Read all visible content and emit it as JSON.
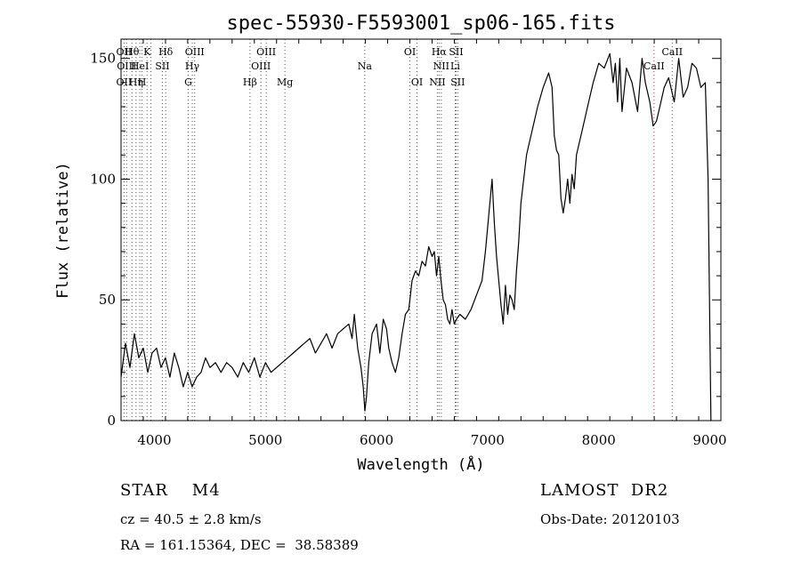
{
  "chart_data": {
    "type": "line",
    "title": "spec-55930-F5593001_sp06-165.fits",
    "xlabel": "Wavelength (Å)",
    "ylabel": "Flux (relative)",
    "xlim": [
      3700,
      9100
    ],
    "ylim": [
      0,
      158
    ],
    "x_ticks": [
      4000,
      5000,
      6000,
      7000,
      8000,
      9000
    ],
    "y_ticks": [
      0,
      50,
      100,
      150
    ],
    "grid": false,
    "series": [
      {
        "color": "#000000",
        "x": [
          3700,
          3740,
          3780,
          3820,
          3860,
          3900,
          3940,
          3980,
          4020,
          4060,
          4100,
          4140,
          4180,
          4220,
          4260,
          4300,
          4340,
          4380,
          4420,
          4460,
          4500,
          4550,
          4600,
          4650,
          4700,
          4750,
          4800,
          4850,
          4900,
          4950,
          5000,
          5050,
          5100,
          5150,
          5200,
          5250,
          5300,
          5350,
          5400,
          5450,
          5500,
          5550,
          5600,
          5650,
          5700,
          5750,
          5780,
          5800,
          5830,
          5860,
          5880,
          5895,
          5910,
          5930,
          5960,
          6000,
          6030,
          6060,
          6090,
          6110,
          6140,
          6170,
          6200,
          6230,
          6260,
          6290,
          6320,
          6350,
          6380,
          6410,
          6440,
          6470,
          6500,
          6520,
          6540,
          6560,
          6580,
          6600,
          6620,
          6640,
          6660,
          6680,
          6700,
          6720,
          6750,
          6800,
          6850,
          6900,
          6950,
          6980,
          7000,
          7020,
          7040,
          7060,
          7080,
          7100,
          7120,
          7140,
          7160,
          7180,
          7200,
          7220,
          7240,
          7260,
          7280,
          7300,
          7350,
          7400,
          7450,
          7500,
          7550,
          7580,
          7600,
          7620,
          7640,
          7660,
          7680,
          7700,
          7720,
          7740,
          7760,
          7780,
          7800,
          7850,
          7900,
          7950,
          8000,
          8050,
          8100,
          8130,
          8150,
          8170,
          8190,
          8210,
          8250,
          8300,
          8350,
          8390,
          8420,
          8460,
          8490,
          8520,
          8550,
          8590,
          8630,
          8680,
          8720,
          8760,
          8800,
          8840,
          8880,
          8920,
          8960,
          8985,
          9000,
          9010
        ],
        "y": [
          18,
          32,
          22,
          36,
          26,
          30,
          20,
          28,
          30,
          22,
          26,
          18,
          28,
          22,
          14,
          20,
          14,
          18,
          20,
          26,
          22,
          24,
          20,
          24,
          22,
          18,
          24,
          20,
          26,
          18,
          24,
          20,
          22,
          24,
          26,
          28,
          30,
          32,
          34,
          28,
          32,
          36,
          30,
          36,
          38,
          40,
          34,
          44,
          30,
          22,
          14,
          4,
          10,
          24,
          36,
          40,
          28,
          42,
          38,
          30,
          24,
          20,
          26,
          36,
          44,
          46,
          58,
          62,
          60,
          66,
          64,
          72,
          68,
          70,
          60,
          68,
          58,
          50,
          48,
          42,
          40,
          46,
          40,
          42,
          44,
          42,
          46,
          52,
          58,
          70,
          80,
          90,
          100,
          82,
          68,
          58,
          48,
          40,
          56,
          44,
          52,
          50,
          46,
          62,
          74,
          90,
          110,
          120,
          130,
          138,
          144,
          138,
          118,
          112,
          110,
          92,
          86,
          92,
          100,
          90,
          102,
          96,
          110,
          120,
          130,
          140,
          148,
          146,
          152,
          140,
          148,
          132,
          150,
          128,
          146,
          140,
          128,
          150,
          140,
          132,
          122,
          124,
          130,
          138,
          142,
          132,
          150,
          134,
          138,
          148,
          146,
          138,
          140,
          100,
          40,
          0
        ]
      }
    ],
    "line_markers": [
      {
        "x": 3727,
        "color": "#555555",
        "labels": [
          "OII",
          "",
          "OII"
        ]
      },
      {
        "x": 3750,
        "color": "#555555",
        "labels": [
          "",
          "OIII",
          ""
        ]
      },
      {
        "x": 3798,
        "color": "#555555",
        "labels": [
          "Hθ",
          "",
          ""
        ]
      },
      {
        "x": 3835,
        "color": "#555555",
        "labels": [
          "",
          "",
          "Hη"
        ]
      },
      {
        "x": 3869,
        "color": "#555555",
        "labels": [
          "",
          "HeI",
          ""
        ]
      },
      {
        "x": 3889,
        "color": "#555555",
        "labels": [
          "",
          "",
          "H"
        ]
      },
      {
        "x": 3934,
        "color": "#555555",
        "labels": [
          "K",
          "",
          ""
        ]
      },
      {
        "x": 3969,
        "color": "#555555",
        "labels": [
          "",
          "",
          ""
        ]
      },
      {
        "x": 4072,
        "color": "#555555",
        "labels": [
          "",
          "SII",
          ""
        ]
      },
      {
        "x": 4102,
        "color": "#555555",
        "labels": [
          "Hδ",
          "",
          ""
        ]
      },
      {
        "x": 4305,
        "color": "#555555",
        "labels": [
          "",
          "",
          "G"
        ]
      },
      {
        "x": 4341,
        "color": "#555555",
        "labels": [
          "",
          "Hγ",
          ""
        ]
      },
      {
        "x": 4363,
        "color": "#555555",
        "labels": [
          "OIII",
          "",
          ""
        ]
      },
      {
        "x": 4861,
        "color": "#555555",
        "labels": [
          "",
          "",
          "Hβ"
        ]
      },
      {
        "x": 4959,
        "color": "#555555",
        "labels": [
          "",
          "OIII",
          ""
        ]
      },
      {
        "x": 5007,
        "color": "#555555",
        "labels": [
          "OIII",
          "",
          ""
        ]
      },
      {
        "x": 5175,
        "color": "#555555",
        "labels": [
          "",
          "",
          "Mg"
        ]
      },
      {
        "x": 5894,
        "color": "#555555",
        "labels": [
          "",
          "Na",
          ""
        ]
      },
      {
        "x": 6300,
        "color": "#555555",
        "labels": [
          "OI",
          "",
          ""
        ]
      },
      {
        "x": 6364,
        "color": "#555555",
        "labels": [
          "",
          "",
          "OI"
        ]
      },
      {
        "x": 6548,
        "color": "#555555",
        "labels": [
          "",
          "",
          "NII"
        ]
      },
      {
        "x": 6563,
        "color": "#555555",
        "labels": [
          "Hα",
          "",
          ""
        ]
      },
      {
        "x": 6583,
        "color": "#555555",
        "labels": [
          "",
          "NII",
          ""
        ]
      },
      {
        "x": 6708,
        "color": "#555555",
        "labels": [
          "",
          "Li",
          ""
        ]
      },
      {
        "x": 6716,
        "color": "#555555",
        "labels": [
          "SII",
          "",
          ""
        ]
      },
      {
        "x": 6731,
        "color": "#555555",
        "labels": [
          "",
          "",
          "SII"
        ]
      },
      {
        "x": 8498,
        "color": "#cc3333",
        "labels": [
          "",
          "CaII",
          ""
        ]
      },
      {
        "x": 8662,
        "color": "#cc3333",
        "labels": [
          "CaII",
          "",
          ""
        ]
      }
    ]
  },
  "info": {
    "object_class": "STAR    M4",
    "survey": "LAMOST  DR2",
    "redshift": "cz = 40.5 ± 2.8 km/s",
    "obs_date": "Obs-Date: 20120103",
    "coords": "RA = 161.15364, DEC =  38.58389"
  }
}
